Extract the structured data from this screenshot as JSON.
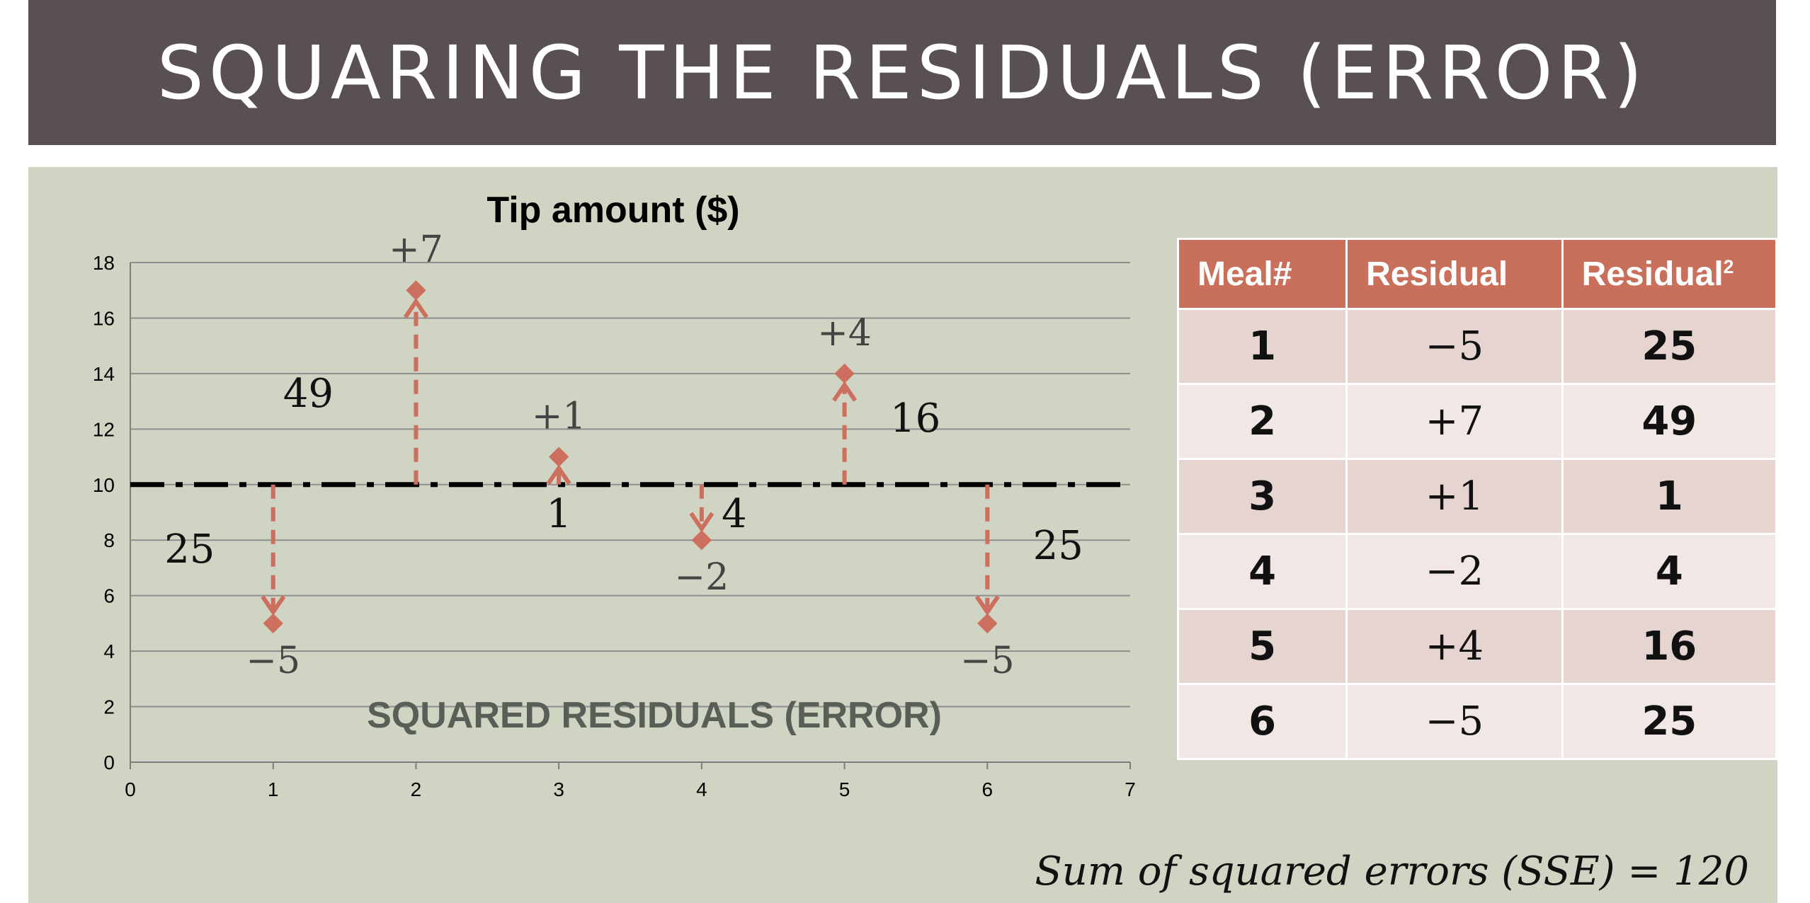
{
  "slide": {
    "title": "SQUARING THE RESIDUALS (ERROR)",
    "sse_text": "Sum of squared errors (SSE) = 120"
  },
  "chart_data": {
    "type": "scatter",
    "title": "Tip amount ($)",
    "xlabel": "",
    "ylabel": "",
    "xlim": [
      0,
      7
    ],
    "ylim": [
      0,
      18
    ],
    "x_ticks": [
      0,
      1,
      2,
      3,
      4,
      5,
      6,
      7
    ],
    "y_ticks": [
      0,
      2,
      4,
      6,
      8,
      10,
      12,
      14,
      16,
      18
    ],
    "grid": true,
    "mean_line": 10,
    "points": [
      {
        "x": 1,
        "y": 5,
        "residual_label": "−5",
        "square_label": "25"
      },
      {
        "x": 2,
        "y": 17,
        "residual_label": "+7",
        "square_label": "49"
      },
      {
        "x": 3,
        "y": 11,
        "residual_label": "+1",
        "square_label": "1"
      },
      {
        "x": 4,
        "y": 8,
        "residual_label": "−2",
        "square_label": "4"
      },
      {
        "x": 5,
        "y": 14,
        "residual_label": "+4",
        "square_label": "16"
      },
      {
        "x": 6,
        "y": 5,
        "residual_label": "−5",
        "square_label": "25"
      }
    ],
    "annotation": "SQUARED RESIDUALS (ERROR)",
    "colors": {
      "point": "#cd6f5e",
      "mean_line": "#000000",
      "grid": "#8e8e8e"
    }
  },
  "table": {
    "headers": [
      "Meal#",
      "Residual",
      "Residual",
      "2"
    ],
    "rows": [
      {
        "meal": "1",
        "residual": "−5",
        "squared": "25"
      },
      {
        "meal": "2",
        "residual": "+7",
        "squared": "49"
      },
      {
        "meal": "3",
        "residual": "+1",
        "squared": "1"
      },
      {
        "meal": "4",
        "residual": "−2",
        "squared": "4"
      },
      {
        "meal": "5",
        "residual": "+4",
        "squared": "16"
      },
      {
        "meal": "6",
        "residual": "−5",
        "squared": "25"
      }
    ]
  }
}
